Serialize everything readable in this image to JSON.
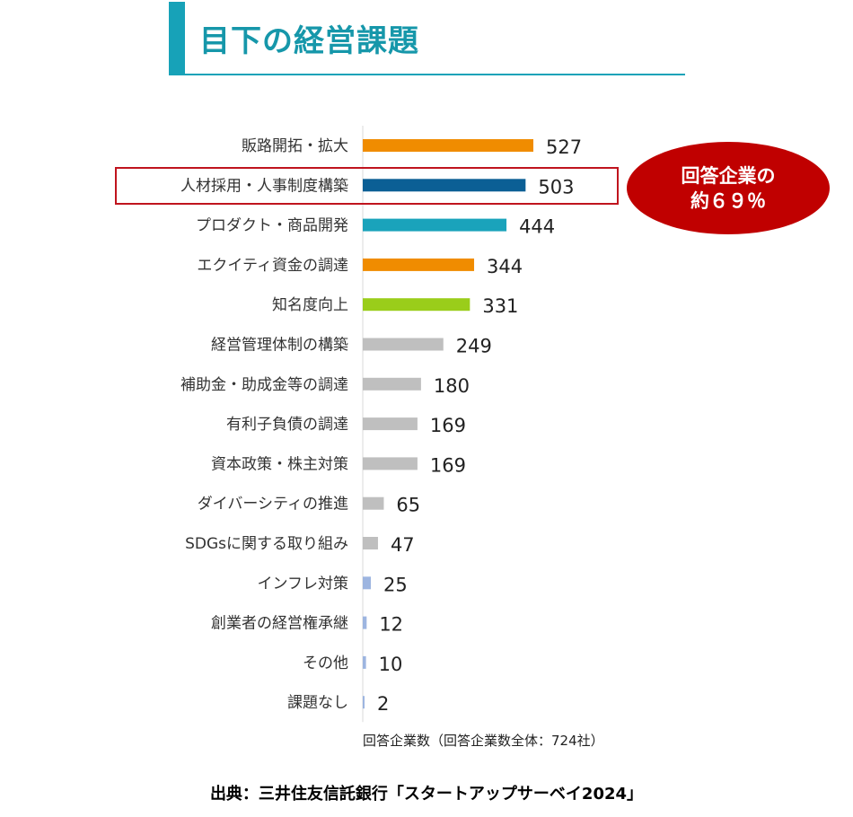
{
  "title": "目下の経営課題",
  "callout": {
    "line1": "回答企業の",
    "line2": "約６９％"
  },
  "footnote": "回答企業数（回答企業数全体：724社）",
  "source": "出典：三井住友信託銀行「スタートアップサーベイ2024」",
  "colors": {
    "orange": "#f08c00",
    "dark_blue": "#0b5f95",
    "teal": "#1aa3bb",
    "lime": "#9acd1a",
    "gray": "#bfbfbf",
    "light_blue": "#9db5e0",
    "highlight": "#c0141e",
    "callout": "#c00000"
  },
  "chart_data": {
    "type": "bar",
    "orientation": "horizontal",
    "categories": [
      "販路開拓・拡大",
      "人材採用・人事制度構築",
      "プロダクト・商品開発",
      "エクイティ資金の調達",
      "知名度向上",
      "経営管理体制の構築",
      "補助金・助成金等の調達",
      "有利子負債の調達",
      "資本政策・株主対策",
      "ダイバーシティの推進",
      "SDGsに関する取り組み",
      "インフレ対策",
      "創業者の経営権承継",
      "その他",
      "課題なし"
    ],
    "values": [
      527,
      503,
      444,
      344,
      331,
      249,
      180,
      169,
      169,
      65,
      47,
      25,
      12,
      10,
      2
    ],
    "bar_colors": [
      "orange",
      "dark_blue",
      "teal",
      "orange",
      "lime",
      "gray",
      "gray",
      "gray",
      "gray",
      "gray",
      "gray",
      "light_blue",
      "light_blue",
      "light_blue",
      "light_blue"
    ],
    "highlighted_category": "人材採用・人事制度構築",
    "xlim": [
      0,
      527
    ],
    "grid": false,
    "legend": "none"
  }
}
